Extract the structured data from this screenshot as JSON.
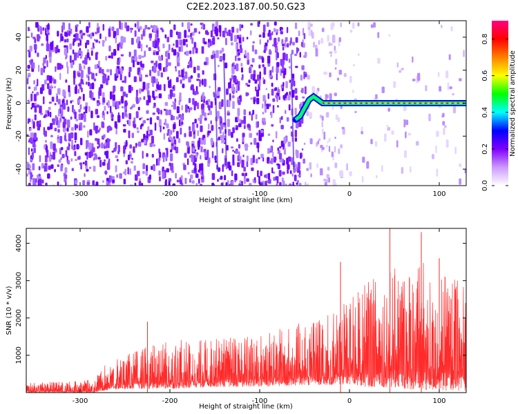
{
  "figure_title": "C2E2.2023.187.00.50.G23",
  "chart_data": [
    {
      "type": "heatmap",
      "title": "C2E2.2023.187.00.50.G23",
      "xlabel": "Height of straight line (km)",
      "ylabel": "Frequency (Hz)",
      "xlim": [
        -360,
        130
      ],
      "ylim": [
        -50,
        50
      ],
      "x_ticks": [
        -300,
        -200,
        -100,
        0,
        100
      ],
      "x_tick_labels": [
        "-300",
        "-200",
        "-100",
        "0",
        "100"
      ],
      "y_ticks": [
        -40,
        -20,
        0,
        20,
        40
      ],
      "y_tick_labels": [
        "-40",
        "-20",
        "0",
        "20",
        "40"
      ],
      "colorbar": {
        "label": "Normalized spectral amplitude",
        "range": [
          0,
          0.9
        ],
        "ticks": [
          0,
          0.2,
          0.4,
          0.6,
          0.8
        ],
        "tick_labels": [
          "0.0",
          "0.2",
          "0.4",
          "0.6",
          "0.8"
        ],
        "colors": [
          "#ffffff",
          "#cc99ff",
          "#7f00ff",
          "#0000ff",
          "#00ffff",
          "#00ff00",
          "#ffff00",
          "#ff8000",
          "#ff0000",
          "#ff0080"
        ]
      },
      "features": {
        "noise_region_x": [
          -360,
          -50
        ],
        "signal_track": {
          "x": [
            -60,
            -55,
            -50,
            -45,
            -40,
            -35,
            -30,
            -20,
            -10,
            0,
            50,
            100,
            130
          ],
          "y": [
            -10,
            -8,
            -3,
            2,
            4,
            2,
            0,
            0,
            0,
            0,
            0,
            0,
            0
          ]
        }
      },
      "grid": false
    },
    {
      "type": "line",
      "title": "",
      "xlabel": "Height of straight line (km)",
      "ylabel": "SNR (10 * v/v)",
      "xlim": [
        -360,
        130
      ],
      "ylim": [
        0,
        4400
      ],
      "x_ticks": [
        -300,
        -200,
        -100,
        0,
        100
      ],
      "x_tick_labels": [
        "-300",
        "-200",
        "-100",
        "0",
        "100"
      ],
      "y_ticks": [
        1000,
        2000,
        3000,
        4000
      ],
      "y_tick_labels": [
        "1000",
        "2000",
        "3000",
        "4000"
      ],
      "series": [
        {
          "color": "#ff2a2a",
          "envelope": {
            "x": [
              -360,
              -340,
              -320,
              -300,
              -285,
              -275,
              -250,
              -220,
              -200,
              -150,
              -100,
              -50,
              -20,
              0,
              20,
              40,
              60,
              80,
              100,
              130
            ],
            "low": [
              0,
              0,
              0,
              0,
              0,
              50,
              100,
              100,
              100,
              150,
              150,
              200,
              200,
              200,
              150,
              150,
              100,
              50,
              50,
              50
            ],
            "high": [
              250,
              280,
              300,
              320,
              350,
              700,
              1000,
              1300,
              1400,
              1450,
              1600,
              1900,
              2100,
              2500,
              3000,
              3300,
              3400,
              3500,
              3300,
              3000
            ]
          },
          "peaks": [
            {
              "x": -225,
              "y": 1900
            },
            {
              "x": -10,
              "y": 3500
            },
            {
              "x": 45,
              "y": 4400
            },
            {
              "x": 80,
              "y": 4300
            },
            {
              "x": 100,
              "y": 3600
            }
          ]
        }
      ],
      "grid": false
    }
  ]
}
